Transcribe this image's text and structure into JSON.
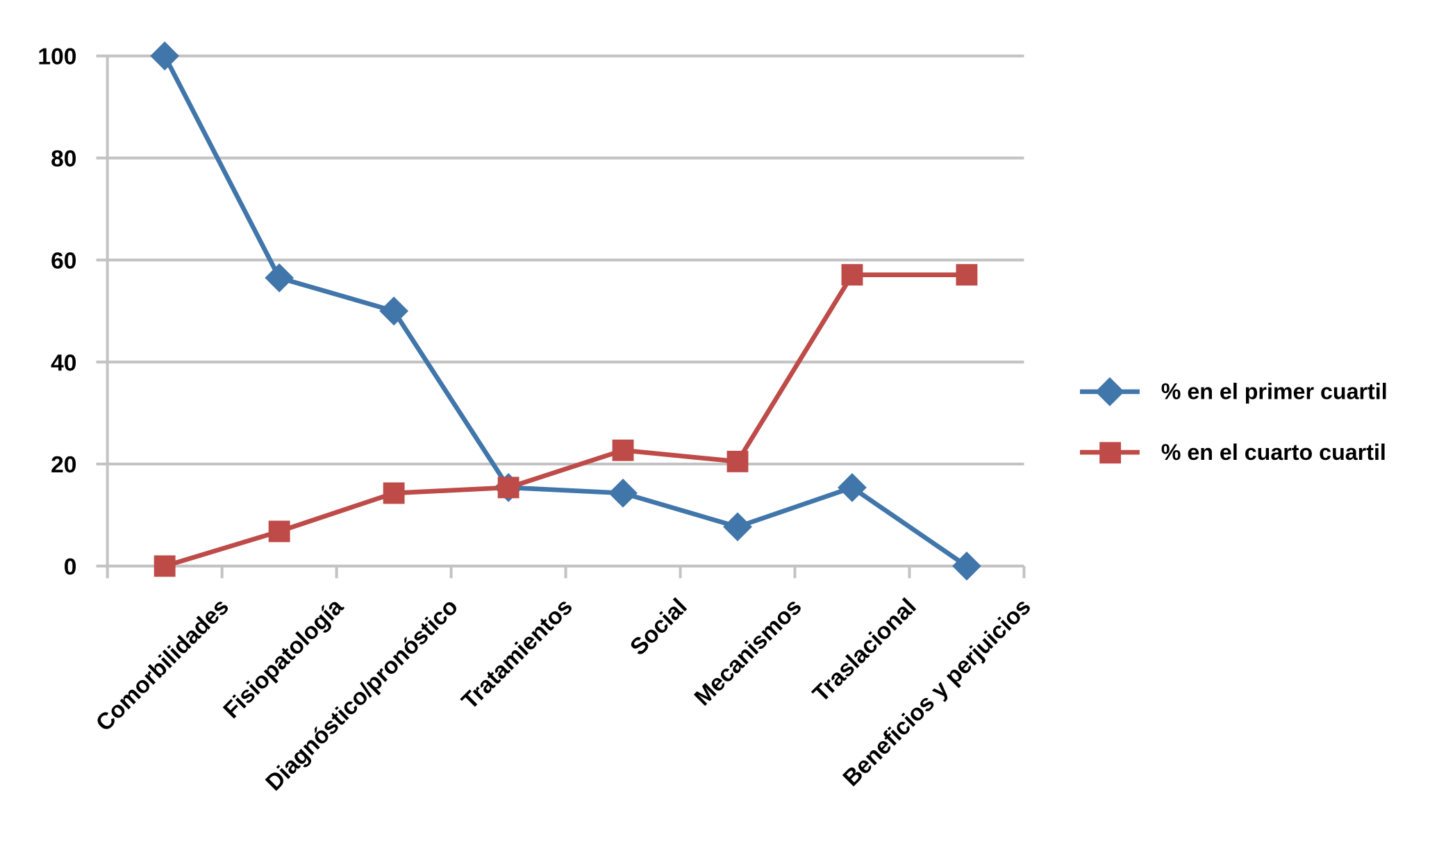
{
  "chart_data": {
    "type": "line",
    "title": "",
    "xlabel": "",
    "ylabel": "",
    "categories": [
      "Comorbilidades",
      "Fisiopatología",
      "Diagnóstico/pronóstico",
      "Tratamientos",
      "Social",
      "Mecanismos",
      "Traslacional",
      "Beneficios y perjuicios"
    ],
    "ylim": [
      0,
      100
    ],
    "yticks": [
      "0",
      "20",
      "40",
      "60",
      "80",
      "100"
    ],
    "grid": true,
    "legend_position": "right",
    "series": [
      {
        "name": "% en el primer cuartil",
        "marker": "diamond",
        "color": "#4176AA",
        "values": [
          100,
          56.5,
          50,
          15.4,
          14.3,
          7.7,
          15.4,
          0
        ]
      },
      {
        "name": "% en el cuarto cuartil",
        "marker": "square",
        "color": "#BE4B48",
        "values": [
          0,
          6.8,
          14.3,
          15.4,
          22.7,
          20.5,
          57.1,
          57.1
        ]
      }
    ]
  }
}
